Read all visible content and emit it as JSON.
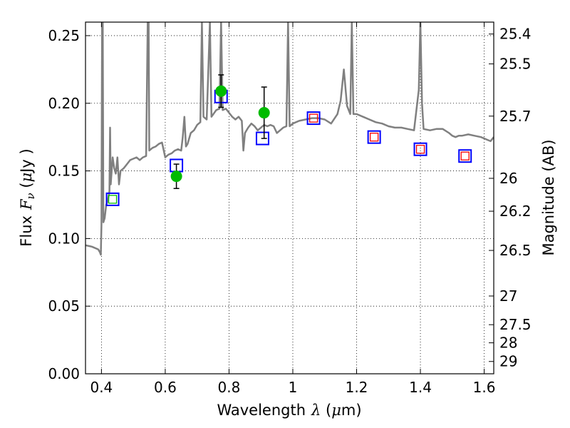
{
  "chart_data": {
    "type": "scatter",
    "xlabel": {
      "prefix": "Wavelength",
      "symbol": "λ",
      "open": " (",
      "unit_mu": "μ",
      "unit_rest": "m)"
    },
    "ylabel": {
      "prefix": "Flux",
      "symbol": "F",
      "subscript": "ν",
      "open": " (",
      "unit_mu": "μ",
      "unit_rest": "Jy )"
    },
    "ylabel_right": "Magnitude (AB)",
    "xlim": [
      0.35,
      1.63
    ],
    "ylim": [
      0.0,
      0.26
    ],
    "grid": true,
    "xticks": [
      0.4,
      0.6,
      0.8,
      1.0,
      1.2,
      1.4,
      1.6
    ],
    "xtick_labels": [
      "0.4",
      "0.6",
      "0.8",
      "1",
      "1.2",
      "1.4",
      "1.6"
    ],
    "yticks": [
      0.0,
      0.05,
      0.1,
      0.15,
      0.2,
      0.25
    ],
    "ytick_labels": [
      "0.00",
      "0.05",
      "0.10",
      "0.15",
      "0.20",
      "0.25"
    ],
    "right_ticks": [
      {
        "label": "25.4",
        "flux": 0.2512
      },
      {
        "label": "25.5",
        "flux": 0.2291
      },
      {
        "label": "25.7",
        "flux": 0.1905
      },
      {
        "label": "26",
        "flux": 0.1445
      },
      {
        "label": "26.2",
        "flux": 0.1202
      },
      {
        "label": "26.5",
        "flux": 0.0912
      },
      {
        "label": "27",
        "flux": 0.0575
      },
      {
        "label": "27.5",
        "flux": 0.0363
      },
      {
        "label": "28",
        "flux": 0.0229
      },
      {
        "label": "29",
        "flux": 0.0091
      }
    ],
    "series": [
      {
        "kind": "spectrum",
        "color": "#808080",
        "points": [
          [
            0.35,
            0.095
          ],
          [
            0.37,
            0.094
          ],
          [
            0.39,
            0.092
          ],
          [
            0.395,
            0.09
          ],
          [
            0.398,
            0.088
          ],
          [
            0.4,
            0.11
          ],
          [
            0.402,
            0.26
          ],
          [
            0.404,
            0.26
          ],
          [
            0.406,
            0.112
          ],
          [
            0.41,
            0.115
          ],
          [
            0.415,
            0.125
          ],
          [
            0.42,
            0.128
          ],
          [
            0.425,
            0.135
          ],
          [
            0.427,
            0.182
          ],
          [
            0.429,
            0.14
          ],
          [
            0.435,
            0.16
          ],
          [
            0.44,
            0.152
          ],
          [
            0.445,
            0.148
          ],
          [
            0.45,
            0.16
          ],
          [
            0.455,
            0.14
          ],
          [
            0.46,
            0.15
          ],
          [
            0.47,
            0.152
          ],
          [
            0.48,
            0.155
          ],
          [
            0.49,
            0.158
          ],
          [
            0.5,
            0.159
          ],
          [
            0.51,
            0.16
          ],
          [
            0.52,
            0.158
          ],
          [
            0.53,
            0.16
          ],
          [
            0.54,
            0.161
          ],
          [
            0.545,
            0.26
          ],
          [
            0.548,
            0.26
          ],
          [
            0.55,
            0.165
          ],
          [
            0.56,
            0.167
          ],
          [
            0.57,
            0.168
          ],
          [
            0.58,
            0.17
          ],
          [
            0.59,
            0.171
          ],
          [
            0.6,
            0.16
          ],
          [
            0.61,
            0.162
          ],
          [
            0.62,
            0.163
          ],
          [
            0.63,
            0.165
          ],
          [
            0.64,
            0.166
          ],
          [
            0.65,
            0.165
          ],
          [
            0.655,
            0.175
          ],
          [
            0.66,
            0.19
          ],
          [
            0.665,
            0.168
          ],
          [
            0.67,
            0.17
          ],
          [
            0.68,
            0.178
          ],
          [
            0.69,
            0.18
          ],
          [
            0.7,
            0.184
          ],
          [
            0.71,
            0.186
          ],
          [
            0.715,
            0.26
          ],
          [
            0.72,
            0.19
          ],
          [
            0.73,
            0.188
          ],
          [
            0.74,
            0.26
          ],
          [
            0.745,
            0.19
          ],
          [
            0.76,
            0.195
          ],
          [
            0.77,
            0.196
          ],
          [
            0.775,
            0.26
          ],
          [
            0.78,
            0.195
          ],
          [
            0.79,
            0.196
          ],
          [
            0.8,
            0.193
          ],
          [
            0.81,
            0.19
          ],
          [
            0.82,
            0.188
          ],
          [
            0.83,
            0.19
          ],
          [
            0.84,
            0.187
          ],
          [
            0.845,
            0.165
          ],
          [
            0.85,
            0.178
          ],
          [
            0.86,
            0.182
          ],
          [
            0.87,
            0.185
          ],
          [
            0.88,
            0.183
          ],
          [
            0.89,
            0.18
          ],
          [
            0.9,
            0.182
          ],
          [
            0.91,
            0.184
          ],
          [
            0.92,
            0.183
          ],
          [
            0.93,
            0.184
          ],
          [
            0.94,
            0.183
          ],
          [
            0.95,
            0.178
          ],
          [
            0.96,
            0.18
          ],
          [
            0.97,
            0.182
          ],
          [
            0.98,
            0.183
          ],
          [
            0.985,
            0.26
          ],
          [
            0.99,
            0.183
          ],
          [
            1.0,
            0.185
          ],
          [
            1.02,
            0.187
          ],
          [
            1.04,
            0.188
          ],
          [
            1.06,
            0.189
          ],
          [
            1.08,
            0.189
          ],
          [
            1.1,
            0.188
          ],
          [
            1.12,
            0.185
          ],
          [
            1.14,
            0.192
          ],
          [
            1.15,
            0.202
          ],
          [
            1.16,
            0.225
          ],
          [
            1.17,
            0.198
          ],
          [
            1.18,
            0.192
          ],
          [
            1.185,
            0.26
          ],
          [
            1.19,
            0.192
          ],
          [
            1.2,
            0.192
          ],
          [
            1.22,
            0.19
          ],
          [
            1.24,
            0.188
          ],
          [
            1.26,
            0.186
          ],
          [
            1.28,
            0.185
          ],
          [
            1.3,
            0.183
          ],
          [
            1.32,
            0.182
          ],
          [
            1.34,
            0.182
          ],
          [
            1.36,
            0.181
          ],
          [
            1.38,
            0.18
          ],
          [
            1.395,
            0.21
          ],
          [
            1.4,
            0.26
          ],
          [
            1.405,
            0.2
          ],
          [
            1.41,
            0.181
          ],
          [
            1.43,
            0.18
          ],
          [
            1.45,
            0.181
          ],
          [
            1.47,
            0.181
          ],
          [
            1.49,
            0.178
          ],
          [
            1.5,
            0.176
          ],
          [
            1.51,
            0.175
          ],
          [
            1.52,
            0.176
          ],
          [
            1.53,
            0.176
          ],
          [
            1.55,
            0.177
          ],
          [
            1.57,
            0.176
          ],
          [
            1.59,
            0.175
          ],
          [
            1.61,
            0.173
          ],
          [
            1.62,
            0.172
          ],
          [
            1.63,
            0.175
          ]
        ]
      },
      {
        "kind": "open_square_blue",
        "color": "#0000ff",
        "points": [
          [
            0.435,
            0.129
          ],
          [
            0.635,
            0.154
          ],
          [
            0.775,
            0.205
          ],
          [
            0.905,
            0.174
          ],
          [
            1.065,
            0.189
          ],
          [
            1.255,
            0.175
          ],
          [
            1.4,
            0.166
          ],
          [
            1.54,
            0.161
          ]
        ]
      },
      {
        "kind": "open_square_red",
        "color": "#ff0000",
        "points": [
          [
            1.065,
            0.189
          ],
          [
            1.255,
            0.175
          ],
          [
            1.4,
            0.166
          ],
          [
            1.54,
            0.161
          ]
        ]
      },
      {
        "kind": "open_square_green",
        "color": "#00bb00",
        "points": [
          [
            0.435,
            0.129
          ]
        ]
      },
      {
        "kind": "filled_circle_green",
        "color": "#00bb00",
        "points": [
          [
            0.635,
            0.146,
            0.009
          ],
          [
            0.775,
            0.209,
            0.012
          ],
          [
            0.91,
            0.193,
            0.019
          ]
        ]
      }
    ]
  }
}
